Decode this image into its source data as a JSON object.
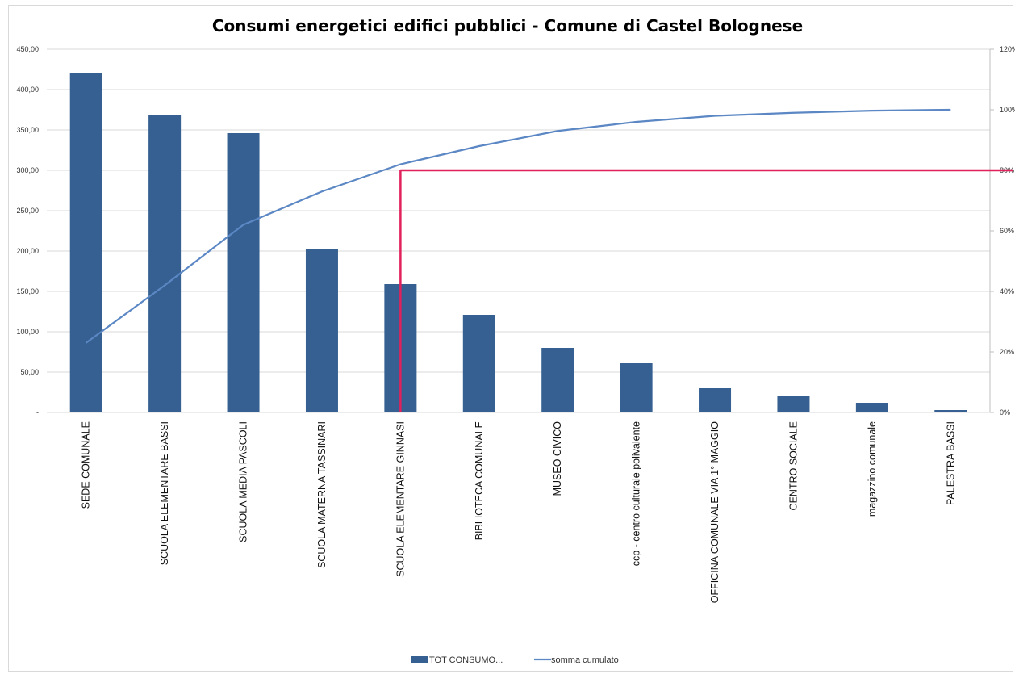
{
  "chart_data": {
    "type": "bar",
    "title": "Consumi energetici edifici pubblici - Comune di Castel Bolognese",
    "categories": [
      "SEDE COMUNALE",
      "SCUOLA ELEMENTARE BASSI",
      "SCUOLA MEDIA PASCOLI",
      "SCUOLA MATERNA TASSINARI",
      "SCUOLA ELEMENTARE GINNASI",
      "BIBLIOTECA COMUNALE",
      "MUSEO CIVICO",
      "ccp - centro culturale polivalente",
      "OFFICINA COMUNALE VIA 1° MAGGIO",
      "CENTRO SOCIALE",
      "magazzino comunale",
      "PALESTRA BASSI"
    ],
    "series": [
      {
        "name": "TOT CONSUMO...",
        "type": "bar",
        "axis": "left",
        "color": "#356091",
        "values": [
          421,
          368,
          346,
          202,
          159,
          121,
          80,
          61,
          30,
          20,
          12,
          3
        ]
      },
      {
        "name": "somma cumulato",
        "type": "line",
        "axis": "right",
        "color": "#5b87c4",
        "values": [
          0.23,
          0.42,
          0.62,
          0.73,
          0.82,
          0.88,
          0.93,
          0.96,
          0.98,
          0.99,
          0.997,
          1.0
        ]
      }
    ],
    "y_left": {
      "ylim": [
        0,
        450
      ],
      "ticks": [
        {
          "value": 0,
          "label": "-"
        },
        {
          "value": 50,
          "label": "50,00"
        },
        {
          "value": 100,
          "label": "100,00"
        },
        {
          "value": 150,
          "label": "150,00"
        },
        {
          "value": 200,
          "label": "200,00"
        },
        {
          "value": 250,
          "label": "250,00"
        },
        {
          "value": 300,
          "label": "300,00"
        },
        {
          "value": 350,
          "label": "350,00"
        },
        {
          "value": 400,
          "label": "400,00"
        },
        {
          "value": 450,
          "label": "450,00"
        }
      ]
    },
    "y_right": {
      "ylim": [
        0,
        1.2
      ],
      "ticks": [
        {
          "value": 0,
          "label": "0%"
        },
        {
          "value": 0.2,
          "label": "20%"
        },
        {
          "value": 0.4,
          "label": "40%"
        },
        {
          "value": 0.6,
          "label": "60%"
        },
        {
          "value": 0.8,
          "label": "80%"
        },
        {
          "value": 1.0,
          "label": "100%"
        },
        {
          "value": 1.2,
          "label": "120%"
        }
      ]
    },
    "annotation": {
      "type": "pareto-threshold",
      "color": "#e0215c",
      "level": 0.8,
      "from_category_index": 4
    },
    "grid": true,
    "legend_position": "bottom"
  }
}
